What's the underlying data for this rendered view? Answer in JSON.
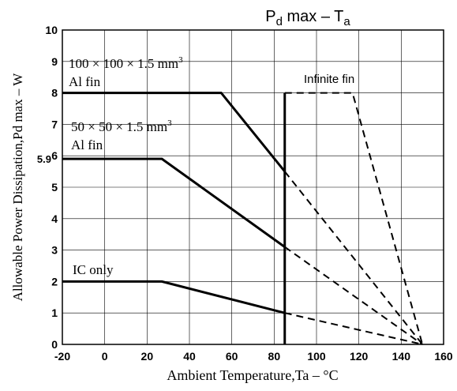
{
  "chart_data": {
    "type": "line",
    "title": {
      "main": "P",
      "sub": "d",
      "rest": " max   –   T",
      "sub2": "a"
    },
    "xlabel": "Ambient Temperature,Ta – °C",
    "ylabel": "Allowable Power Dissipation,Pd max – W",
    "xlim": [
      -20,
      160
    ],
    "ylim": [
      0,
      10
    ],
    "xticks": [
      -20,
      0,
      20,
      40,
      60,
      80,
      100,
      120,
      140,
      160
    ],
    "yticks": [
      0,
      1,
      2,
      3,
      4,
      5,
      6,
      7,
      8,
      9,
      10
    ],
    "grid": true,
    "extra_ytick": {
      "value": 5.9,
      "label": "5.9"
    },
    "vertical_marker": {
      "x": 85
    },
    "series": [
      {
        "id": "s100",
        "x": [
          -20,
          55,
          85
        ],
        "y": [
          8,
          8,
          5.5
        ],
        "dashed": {
          "x": [
            85,
            150
          ],
          "y": [
            5.5,
            0
          ]
        }
      },
      {
        "id": "s50",
        "x": [
          -20,
          27,
          85
        ],
        "y": [
          5.9,
          5.9,
          3.1
        ],
        "dashed": {
          "x": [
            85,
            150
          ],
          "y": [
            3.1,
            0
          ]
        }
      },
      {
        "id": "sic",
        "x": [
          -20,
          27,
          85
        ],
        "y": [
          2,
          2,
          1.0
        ],
        "dashed": {
          "x": [
            85,
            150
          ],
          "y": [
            1.0,
            0
          ]
        }
      },
      {
        "id": "sinf",
        "x": [
          85,
          117
        ],
        "y": [
          8,
          8
        ],
        "dashed_only": true,
        "dashed": {
          "x": [
            85,
            117,
            150
          ],
          "y": [
            8,
            8,
            0
          ]
        }
      }
    ],
    "annotations": {
      "label_100_line1": "100 × 100 × 1.5 mm",
      "label_100_sup": "3",
      "label_100_line2": "Al fin",
      "label_50_line1": "50 × 50 × 1.5 mm",
      "label_50_sup": "3",
      "label_50_line2": "Al fin",
      "label_ic": "IC  only",
      "label_inf": "Infinite fin"
    }
  }
}
